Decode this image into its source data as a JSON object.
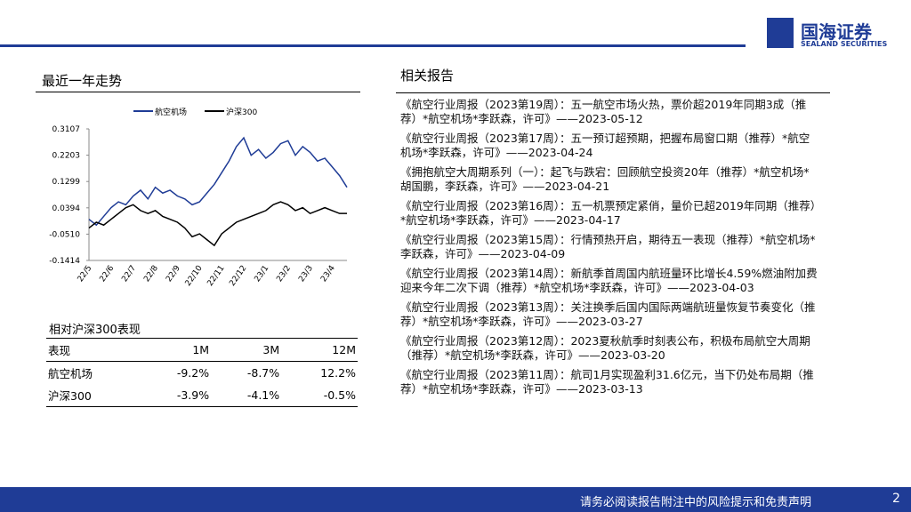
{
  "header": {
    "brand": "国海证券",
    "brand_en": "SEALAND SECURITIES"
  },
  "trend": {
    "title": "最近一年走势",
    "chart_data": {
      "type": "line",
      "categories": [
        "22/5",
        null,
        null,
        "22/6",
        null,
        null,
        "22/7",
        null,
        null,
        "22/8",
        null,
        null,
        "22/9",
        null,
        null,
        "22/10",
        null,
        null,
        "22/11",
        null,
        null,
        "22/12",
        null,
        null,
        "23/1",
        null,
        null,
        "23/2",
        null,
        null,
        "23/3",
        null,
        null,
        "23/4",
        null,
        null
      ],
      "series": [
        {
          "name": "航空机场",
          "color": "#1f3c96",
          "values": [
            0.0,
            -0.02,
            0.01,
            0.04,
            0.06,
            0.05,
            0.08,
            0.1,
            0.07,
            0.11,
            0.09,
            0.1,
            0.08,
            0.07,
            0.05,
            0.06,
            0.09,
            0.12,
            0.16,
            0.2,
            0.25,
            0.28,
            0.22,
            0.24,
            0.21,
            0.23,
            0.26,
            0.27,
            0.22,
            0.25,
            0.23,
            0.2,
            0.21,
            0.18,
            0.15,
            0.11
          ]
        },
        {
          "name": "沪深300",
          "color": "#000000",
          "values": [
            -0.03,
            -0.01,
            -0.02,
            0.0,
            0.02,
            0.04,
            0.05,
            0.03,
            0.02,
            0.03,
            0.01,
            0.0,
            -0.01,
            -0.03,
            -0.06,
            -0.05,
            -0.07,
            -0.09,
            -0.05,
            -0.03,
            -0.01,
            0.0,
            0.01,
            0.02,
            0.03,
            0.05,
            0.06,
            0.05,
            0.03,
            0.04,
            0.02,
            0.03,
            0.04,
            0.03,
            0.02,
            0.02
          ]
        }
      ],
      "ylim": [
        -0.1414,
        0.3107
      ],
      "yticks": [
        -0.1414,
        {
          "value": -0.051,
          "label": "-0.0510"
        },
        0.0394,
        0.1299,
        0.2203,
        0.3107
      ]
    }
  },
  "perf": {
    "title": "相对沪深300表现",
    "table": {
      "header": [
        "表现",
        "1M",
        "3M",
        "12M"
      ],
      "rows": [
        [
          "航空机场",
          "-9.2%",
          "-8.7%",
          "12.2%"
        ],
        [
          "沪深300",
          "-3.9%",
          "-4.1%",
          "-0.5%"
        ]
      ]
    }
  },
  "reports": {
    "title": "相关报告",
    "items": [
      "《航空行业周报（2023第19周）：五一航空市场火热，票价超2019年同期3成（推荐）*航空机场*李跃森，许可》——2023-05-12",
      "《航空行业周报（2023第17周）：五一预订超预期，把握布局窗口期（推荐）*航空机场*李跃森，许可》——2023-04-24",
      "《拥抱航空大周期系列（一）：起飞与跌宕：回顾航空投资20年（推荐）*航空机场*胡国鹏，李跃森，许可》——2023-04-21",
      "《航空行业周报（2023第16周）：五一机票预定紧俏，量价已超2019年同期（推荐）*航空机场*李跃森，许可》——2023-04-17",
      "《航空行业周报（2023第15周）：行情预热开启，期待五一表现（推荐）*航空机场*李跃森，许可》——2023-04-09",
      "《航空行业周报（2023第14周）：新航季首周国内航班量环比增长4.59%燃油附加费迎来今年二次下调（推荐）*航空机场*李跃森，许可》——2023-04-03",
      "《航空行业周报（2023第13周）：关注换季后国内国际两端航班量恢复节奏变化（推荐）*航空机场*李跃森，许可》——2023-03-27",
      "《航空行业周报（2023第12周）：2023夏秋航季时刻表公布，积极布局航空大周期（推荐）*航空机场*李跃森，许可》——2023-03-20",
      "《航空行业周报（2023第11周）：航司1月实现盈利31.6亿元，当下仍处布局期（推荐）*航空机场*李跃森，许可》——2023-03-13"
    ]
  },
  "footer": {
    "disclaimer": "请务必阅读报告附注中的风险提示和免责声明",
    "page": "2"
  }
}
